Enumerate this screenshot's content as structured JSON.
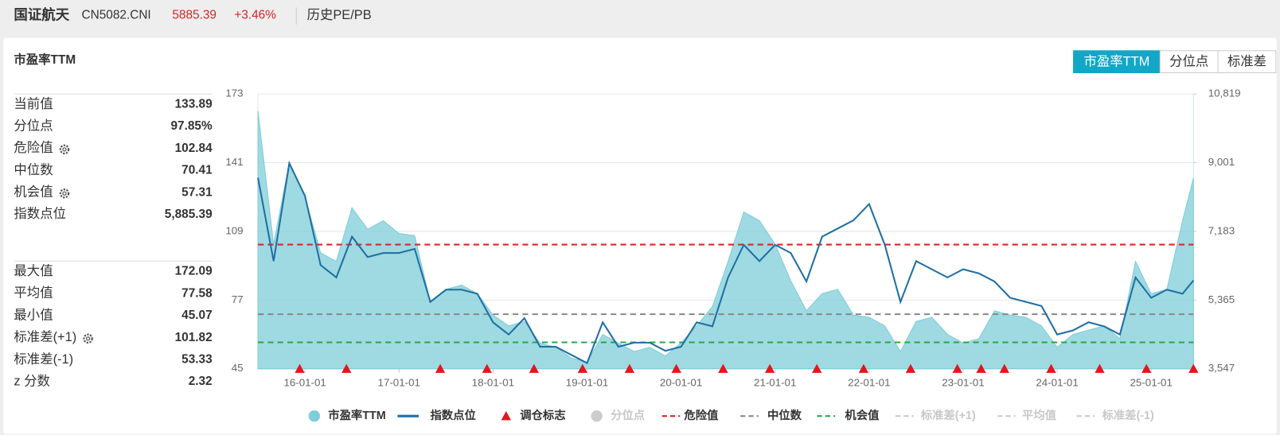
{
  "header": {
    "name": "国证航天",
    "code": "CN5082.CNI",
    "price": "5885.39",
    "change": "+3.46%",
    "link": "历史PE/PB"
  },
  "panel": {
    "title": "市盈率TTM",
    "tabs": [
      "市盈率TTM",
      "分位点",
      "标准差"
    ],
    "active_tab": 0
  },
  "stats": {
    "groups": [
      [
        {
          "label": "当前值",
          "value": "133.89"
        },
        {
          "label": "分位点",
          "value": "97.85%"
        },
        {
          "label": "危险值",
          "value": "102.84",
          "gear": true
        },
        {
          "label": "中位数",
          "value": "70.41"
        },
        {
          "label": "机会值",
          "value": "57.31",
          "gear": true
        },
        {
          "label": "指数点位",
          "value": "5,885.39"
        }
      ],
      [
        {
          "label": "最大值",
          "value": "172.09"
        },
        {
          "label": "平均值",
          "value": "77.58"
        },
        {
          "label": "最小值",
          "value": "45.07"
        },
        {
          "label": "标准差(+1)",
          "value": "101.82",
          "gear": true
        },
        {
          "label": "标准差(-1)",
          "value": "53.33"
        },
        {
          "label": "z 分数",
          "value": "2.32"
        }
      ]
    ]
  },
  "chart_data": {
    "type": "line",
    "x": [
      "15-07-01",
      "15-09-01",
      "15-11-01",
      "16-01-01",
      "16-03-01",
      "16-05-01",
      "16-07-01",
      "16-09-01",
      "16-11-01",
      "17-01-01",
      "17-03-01",
      "17-05-01",
      "17-07-01",
      "17-09-01",
      "17-11-01",
      "18-01-01",
      "18-03-01",
      "18-05-01",
      "18-07-01",
      "18-09-01",
      "18-11-01",
      "19-01-01",
      "19-03-01",
      "19-05-01",
      "19-07-01",
      "19-09-01",
      "19-11-01",
      "20-01-01",
      "20-03-01",
      "20-05-01",
      "20-07-01",
      "20-09-01",
      "20-11-01",
      "21-01-01",
      "21-03-01",
      "21-05-01",
      "21-07-01",
      "21-09-01",
      "21-11-01",
      "22-01-01",
      "22-03-01",
      "22-05-01",
      "22-07-01",
      "22-09-01",
      "22-11-01",
      "23-01-01",
      "23-03-01",
      "23-05-01",
      "23-07-01",
      "23-09-01",
      "23-11-01",
      "24-01-01",
      "24-03-01",
      "24-05-01",
      "24-07-01",
      "24-09-01",
      "24-11-01",
      "25-01-01",
      "25-03-01",
      "25-05-01",
      "25-06-13"
    ],
    "xlim": [
      "15-07-01",
      "25-06-13"
    ],
    "xticks": [
      "16-01-01",
      "17-01-01",
      "18-01-01",
      "19-01-01",
      "20-01-01",
      "21-01-01",
      "22-01-01",
      "23-01-01",
      "24-01-01",
      "25-01-01"
    ],
    "ylim": [
      45,
      173
    ],
    "yticks": [
      45,
      77,
      109,
      141,
      173
    ],
    "y2lim": [
      3547,
      10819
    ],
    "y2ticks": [
      {
        "value": 3547,
        "label": "3,547"
      },
      {
        "value": 5365,
        "label": "5,365"
      },
      {
        "value": 7183,
        "label": "7,183"
      },
      {
        "value": 9001,
        "label": "9,001"
      },
      {
        "value": 10819,
        "label": "10,819"
      }
    ],
    "grid": true,
    "series": [
      {
        "name": "市盈率TTM",
        "type": "area",
        "color": "#7fcdd8",
        "values": [
          165,
          103,
          141,
          125,
          99,
          95,
          120,
          110,
          114,
          108,
          107,
          76,
          82,
          84,
          80,
          70,
          65,
          67,
          57,
          55,
          50,
          48,
          61,
          57,
          53,
          55,
          51,
          57,
          65,
          74,
          95,
          118,
          114,
          103,
          86,
          72,
          80,
          82,
          70,
          69,
          65,
          53,
          67,
          69,
          61,
          57,
          59,
          72,
          70,
          69,
          65,
          55,
          61,
          63,
          65,
          59,
          95,
          80,
          82,
          114,
          133.89
        ]
      },
      {
        "name": "指数点位",
        "type": "line",
        "axis": "y2",
        "color": "#1f6fa3",
        "values": [
          8600,
          6396,
          8985,
          8122,
          6288,
          5964,
          7043,
          6504,
          6611,
          6611,
          6719,
          5317,
          5640,
          5640,
          5532,
          4777,
          4453,
          4885,
          4130,
          4130,
          3914,
          3698,
          4777,
          4130,
          4238,
          4238,
          4022,
          4130,
          4777,
          4669,
          5964,
          6827,
          6396,
          6827,
          6611,
          5856,
          7043,
          7259,
          7475,
          7906,
          6827,
          5317,
          6396,
          6180,
          5964,
          6180,
          6072,
          5856,
          5425,
          5317,
          5209,
          4453,
          4561,
          4777,
          4669,
          4453,
          5964,
          5425,
          5640,
          5532,
          5885.39
        ]
      },
      {
        "name": "调仓标志",
        "type": "marker",
        "color": "#e8141b",
        "x": [
          "15-12-11",
          "16-06-10",
          "17-06-09",
          "17-12-08",
          "18-06-08",
          "18-12-14",
          "19-06-14",
          "19-12-13",
          "20-06-12",
          "20-12-11",
          "21-06-11",
          "21-12-10",
          "22-06-10",
          "22-12-09",
          "23-03-10",
          "23-06-09",
          "23-12-08",
          "24-06-14",
          "24-12-13",
          "25-06-13"
        ]
      },
      {
        "name": "分位点",
        "type": "hidden",
        "symbol": "circle",
        "color": "#cccccc"
      },
      {
        "name": "危险值",
        "type": "hline",
        "color": "#d9262b",
        "value": 102.84
      },
      {
        "name": "中位数",
        "type": "hline",
        "color": "#888888",
        "value": 70.41
      },
      {
        "name": "机会值",
        "type": "hline",
        "color": "#2aa54a",
        "value": 57.31
      },
      {
        "name": "标准差(+1)",
        "type": "hidden",
        "symbol": "dash",
        "color": "#cccccc"
      },
      {
        "name": "平均值",
        "type": "hidden",
        "symbol": "dash",
        "color": "#cccccc"
      },
      {
        "name": "标准差(-1)",
        "type": "hidden",
        "symbol": "dash",
        "color": "#cccccc"
      }
    ]
  }
}
